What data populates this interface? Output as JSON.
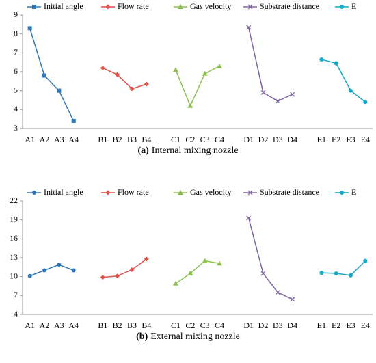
{
  "chart_data": [
    {
      "type": "line",
      "caption": [
        "(a)",
        "Internal mixing nozzle"
      ],
      "categories": [
        "A1",
        "A2",
        "A3",
        "A4",
        null,
        "B1",
        "B2",
        "B3",
        "B4",
        null,
        "C1",
        "C2",
        "C3",
        "C4",
        null,
        "D1",
        "D2",
        "D3",
        "D4",
        null,
        "E1",
        "E2",
        "E3",
        "E4"
      ],
      "ylim": [
        3,
        9
      ],
      "yticks": [
        3,
        4,
        5,
        6,
        7,
        8,
        9
      ],
      "series": [
        {
          "name": "Initial angle",
          "color": "#2e75b6",
          "marker": "square",
          "values": [
            8.3,
            5.8,
            5.0,
            3.4,
            null,
            null,
            null,
            null,
            null,
            null,
            null,
            null,
            null,
            null,
            null,
            null,
            null,
            null,
            null,
            null,
            null,
            null,
            null,
            null
          ]
        },
        {
          "name": "Flow rate",
          "color": "#e0504a",
          "marker": "diamond",
          "values": [
            null,
            null,
            null,
            null,
            null,
            6.2,
            5.85,
            5.1,
            5.35,
            null,
            null,
            null,
            null,
            null,
            null,
            null,
            null,
            null,
            null,
            null,
            null,
            null,
            null,
            null
          ]
        },
        {
          "name": "Gas velocity",
          "color": "#8cc152",
          "marker": "triangle",
          "values": [
            null,
            null,
            null,
            null,
            null,
            null,
            null,
            null,
            null,
            null,
            6.1,
            4.2,
            5.9,
            6.3,
            null,
            null,
            null,
            null,
            null,
            null,
            null,
            null,
            null,
            null
          ]
        },
        {
          "name": "Substrate distance",
          "color": "#8064a2",
          "marker": "x",
          "values": [
            null,
            null,
            null,
            null,
            null,
            null,
            null,
            null,
            null,
            null,
            null,
            null,
            null,
            null,
            null,
            8.35,
            4.9,
            4.45,
            4.8,
            null,
            null,
            null,
            null,
            null
          ]
        },
        {
          "name": "E",
          "color": "#17a9c6",
          "marker": "circle",
          "values": [
            null,
            null,
            null,
            null,
            null,
            null,
            null,
            null,
            null,
            null,
            null,
            null,
            null,
            null,
            null,
            null,
            null,
            null,
            null,
            null,
            6.65,
            6.45,
            5.0,
            4.4
          ]
        }
      ]
    },
    {
      "type": "line",
      "caption": [
        "(b)",
        "External mixing nozzle"
      ],
      "categories": [
        "A1",
        "A2",
        "A3",
        "A4",
        null,
        "B1",
        "B2",
        "B3",
        "B4",
        null,
        "C1",
        "C2",
        "C3",
        "C4",
        null,
        "D1",
        "D2",
        "D3",
        "D4",
        null,
        "E1",
        "E2",
        "E3",
        "E4"
      ],
      "ylim": [
        4,
        22
      ],
      "yticks": [
        4,
        7,
        10,
        13,
        16,
        19,
        22
      ],
      "series": [
        {
          "name": "Initial angle",
          "color": "#2e75b6",
          "marker": "circle",
          "values": [
            10.1,
            11.0,
            11.9,
            11.0,
            null,
            null,
            null,
            null,
            null,
            null,
            null,
            null,
            null,
            null,
            null,
            null,
            null,
            null,
            null,
            null,
            null,
            null,
            null,
            null
          ]
        },
        {
          "name": "Flow rate",
          "color": "#e0504a",
          "marker": "diamond",
          "values": [
            null,
            null,
            null,
            null,
            null,
            9.9,
            10.1,
            11.1,
            12.8,
            null,
            null,
            null,
            null,
            null,
            null,
            null,
            null,
            null,
            null,
            null,
            null,
            null,
            null,
            null
          ]
        },
        {
          "name": "Gas velocity",
          "color": "#8cc152",
          "marker": "triangle",
          "values": [
            null,
            null,
            null,
            null,
            null,
            null,
            null,
            null,
            null,
            null,
            8.9,
            10.5,
            12.5,
            12.1,
            null,
            null,
            null,
            null,
            null,
            null,
            null,
            null,
            null,
            null
          ]
        },
        {
          "name": "Substrate distance",
          "color": "#8064a2",
          "marker": "x",
          "values": [
            null,
            null,
            null,
            null,
            null,
            null,
            null,
            null,
            null,
            null,
            null,
            null,
            null,
            null,
            null,
            19.3,
            10.5,
            7.5,
            6.4,
            null,
            null,
            null,
            null,
            null
          ]
        },
        {
          "name": "E",
          "color": "#17a9c6",
          "marker": "circle",
          "values": [
            null,
            null,
            null,
            null,
            null,
            null,
            null,
            null,
            null,
            null,
            null,
            null,
            null,
            null,
            null,
            null,
            null,
            null,
            null,
            null,
            10.6,
            10.5,
            10.2,
            12.5
          ]
        }
      ]
    }
  ]
}
